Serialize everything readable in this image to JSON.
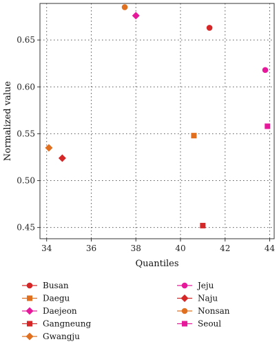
{
  "chart_data": {
    "type": "scatter",
    "xlabel": "Quantiles",
    "ylabel": "Normalized value",
    "xlim": [
      33.7,
      44.2
    ],
    "ylim": [
      0.438,
      0.689
    ],
    "xticks": [
      34,
      36,
      38,
      40,
      42,
      44
    ],
    "yticks": [
      0.45,
      0.5,
      0.55,
      0.6,
      0.65
    ],
    "xtick_labels": [
      "34",
      "36",
      "38",
      "40",
      "42",
      "44"
    ],
    "ytick_labels": [
      "0.45",
      "0.50",
      "0.55",
      "0.60",
      "0.65"
    ],
    "grid": true,
    "legend_position": "bottom",
    "series": [
      {
        "name": "Busan",
        "color": "#d62728",
        "marker": "circle",
        "x": 41.3,
        "y": 0.663
      },
      {
        "name": "Daegu",
        "color": "#e07020",
        "marker": "square",
        "x": 40.6,
        "y": 0.548
      },
      {
        "name": "Daejeon",
        "color": "#e6199b",
        "marker": "diamond",
        "x": 38.0,
        "y": 0.676
      },
      {
        "name": "Gangneung",
        "color": "#d62728",
        "marker": "square",
        "x": 41.0,
        "y": 0.452
      },
      {
        "name": "Gwangju",
        "color": "#e07020",
        "marker": "diamond",
        "x": 34.1,
        "y": 0.535
      },
      {
        "name": "Jeju",
        "color": "#e6199b",
        "marker": "circle",
        "x": 43.8,
        "y": 0.618
      },
      {
        "name": "Naju",
        "color": "#d62728",
        "marker": "diamond",
        "x": 34.7,
        "y": 0.524
      },
      {
        "name": "Nonsan",
        "color": "#e07020",
        "marker": "circle",
        "x": 37.5,
        "y": 0.685
      },
      {
        "name": "Seoul",
        "color": "#e6199b",
        "marker": "square",
        "x": 43.9,
        "y": 0.558
      }
    ]
  }
}
